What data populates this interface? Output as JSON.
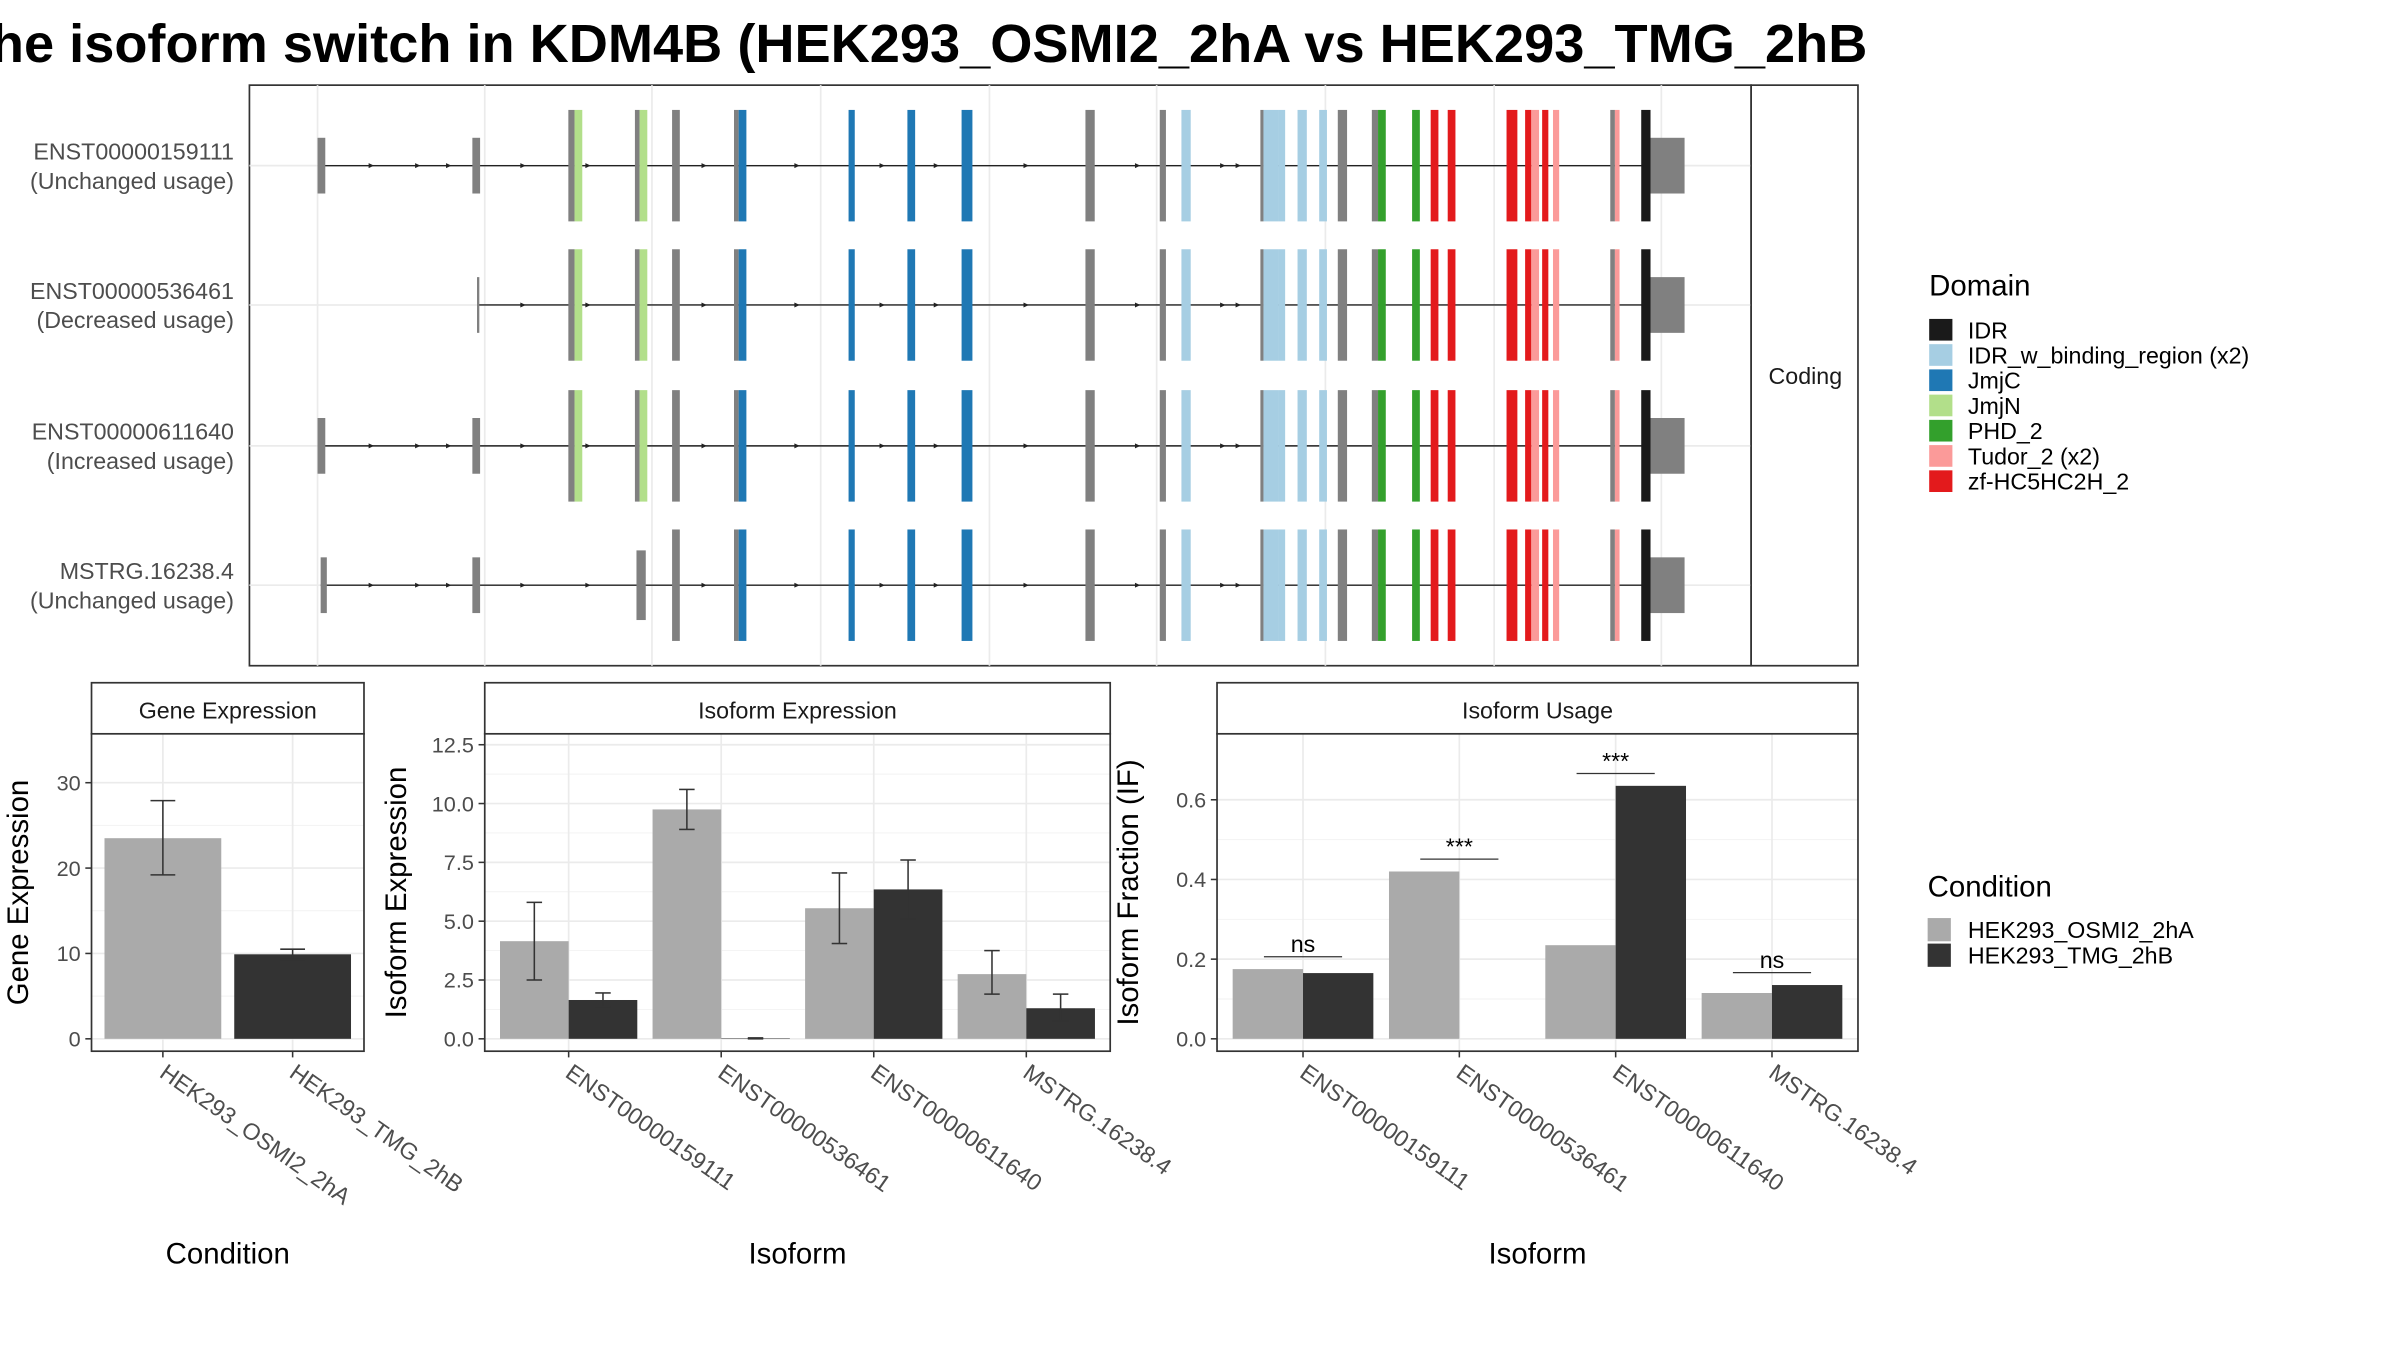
{
  "title": "he isoform switch in KDM4B (HEK293_OSMI2_2hA vs HEK293_TMG_2hB",
  "colors": {
    "IDR": "#1a1a1a",
    "IDR_w_binding_region (x2)": "#a6cee3",
    "JmjC": "#1f78b4",
    "JmjN": "#b2df8a",
    "PHD_2": "#33a02c",
    "Tudor_2 (x2)": "#fb9a99",
    "zf-HC5HC2H_2": "#e31a1c",
    "exon": "#808080",
    "condA": "#aaaaaa",
    "condB": "#333333"
  },
  "isoform_panel": {
    "strip_label": "Coding",
    "isoforms": [
      {
        "id": "ENST00000159111",
        "usage": "(Unchanged usage)"
      },
      {
        "id": "ENST00000536461",
        "usage": "(Decreased usage)"
      },
      {
        "id": "ENST00000611640",
        "usage": "(Increased usage)"
      },
      {
        "id": "MSTRG.16238.4",
        "usage": "(Unchanged usage)"
      }
    ]
  },
  "domain_legend": {
    "title": "Domain",
    "items": [
      "IDR",
      "IDR_w_binding_region (x2)",
      "JmjC",
      "JmjN",
      "PHD_2",
      "Tudor_2 (x2)",
      "zf-HC5HC2H_2"
    ]
  },
  "condition_legend": {
    "title": "Condition",
    "items": [
      "HEK293_OSMI2_2hA",
      "HEK293_TMG_2hB"
    ]
  },
  "chart_data": [
    {
      "type": "bar",
      "title": "Gene Expression",
      "xlabel": "Condition",
      "ylabel": "Gene Expression",
      "ylim": [
        0,
        35
      ],
      "yticks": [
        0,
        10,
        20,
        30
      ],
      "categories": [
        "HEK293_OSMI2_2hA",
        "HEK293_TMG_2hB"
      ],
      "values": [
        23.5,
        9.9
      ],
      "errors": [
        [
          19.2,
          27.9
        ],
        [
          9.3,
          10.5
        ]
      ]
    },
    {
      "type": "bar",
      "title": "Isoform Expression",
      "xlabel": "Isoform",
      "ylabel": "Isoform Expression",
      "ylim": [
        0,
        12.7
      ],
      "yticks": [
        0.0,
        2.5,
        5.0,
        7.5,
        10.0,
        12.5
      ],
      "categories": [
        "ENST00000159111",
        "ENST00000536461",
        "ENST00000611640",
        "MSTRG.16238.4"
      ],
      "series": [
        {
          "name": "HEK293_OSMI2_2hA",
          "values": [
            4.15,
            9.75,
            5.55,
            2.75
          ],
          "errors": [
            [
              2.5,
              5.8
            ],
            [
              8.9,
              10.6
            ],
            [
              4.05,
              7.05
            ],
            [
              1.9,
              3.75
            ]
          ]
        },
        {
          "name": "HEK293_TMG_2hB",
          "values": [
            1.65,
            0.02,
            6.35,
            1.3
          ],
          "errors": [
            [
              1.35,
              1.95
            ],
            [
              0.0,
              0.04
            ],
            [
              5.1,
              7.6
            ],
            [
              0.75,
              1.9
            ]
          ]
        }
      ]
    },
    {
      "type": "bar",
      "title": "Isoform Usage",
      "xlabel": "Isoform",
      "ylabel": "Isoform Fraction (IF)",
      "ylim": [
        0,
        0.75
      ],
      "yticks": [
        0.0,
        0.2,
        0.4,
        0.6
      ],
      "categories": [
        "ENST00000159111",
        "ENST00000536461",
        "ENST00000611640",
        "MSTRG.16238.4"
      ],
      "series": [
        {
          "name": "HEK293_OSMI2_2hA",
          "values": [
            0.175,
            0.42,
            0.235,
            0.115
          ]
        },
        {
          "name": "HEK293_TMG_2hB",
          "values": [
            0.165,
            0.0,
            0.635,
            0.135
          ]
        }
      ],
      "significance": [
        "ns",
        "***",
        "***",
        "ns"
      ]
    }
  ]
}
